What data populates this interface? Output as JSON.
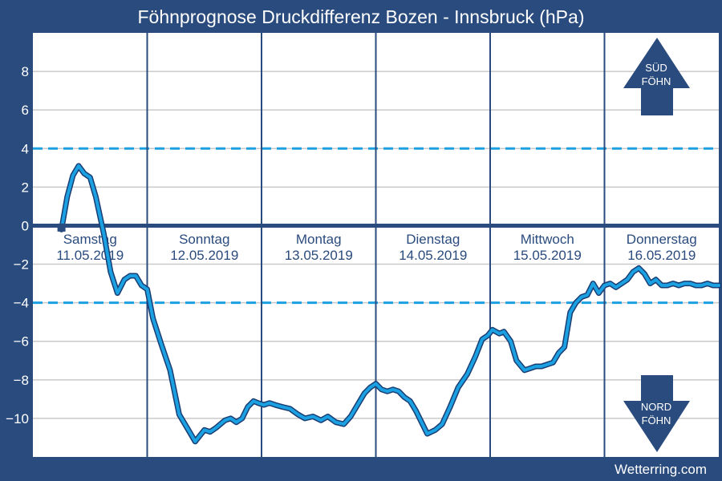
{
  "chart_data": {
    "type": "line",
    "title": "Föhnprognose Druckdifferenz Bozen - Innsbruck (hPa)",
    "ylim": [
      -12,
      10
    ],
    "yticks": [
      8,
      6,
      4,
      2,
      0,
      -2,
      -4,
      -6,
      -8,
      -10
    ],
    "ytick_labels": [
      "8",
      "6",
      "4",
      "2",
      "0",
      "−2",
      "−4",
      "−6",
      "−8",
      "−10"
    ],
    "threshold_lines": [
      4,
      -4
    ],
    "zero_line": 0,
    "grid": true,
    "days": [
      {
        "name": "Samstag",
        "date": "11.05.2019"
      },
      {
        "name": "Sonntag",
        "date": "12.05.2019"
      },
      {
        "name": "Montag",
        "date": "13.05.2019"
      },
      {
        "name": "Dienstag",
        "date": "14.05.2019"
      },
      {
        "name": "Mittwoch",
        "date": "15.05.2019"
      },
      {
        "name": "Donnerstag",
        "date": "16.05.2019"
      }
    ],
    "x_unit": "days since start of 11.05.2019",
    "xlim": [
      0,
      6
    ],
    "start_marker": {
      "x": 0.25,
      "y": -0.1
    },
    "series": [
      {
        "x": [
          0.25,
          0.3,
          0.35,
          0.4,
          0.45,
          0.5,
          0.55,
          0.62,
          0.68,
          0.74,
          0.8,
          0.85,
          0.9,
          0.95,
          1.0,
          1.05,
          1.12,
          1.2,
          1.28,
          1.35,
          1.42,
          1.5,
          1.55,
          1.6,
          1.68,
          1.73,
          1.78,
          1.83,
          1.88,
          1.93,
          1.97,
          2.02,
          2.07,
          2.12,
          2.18,
          2.25,
          2.32,
          2.38,
          2.45,
          2.52,
          2.58,
          2.65,
          2.72,
          2.78,
          2.85,
          2.9,
          2.95,
          3.0,
          3.05,
          3.1,
          3.15,
          3.2,
          3.25,
          3.3,
          3.35,
          3.4,
          3.45,
          3.52,
          3.58,
          3.65,
          3.72,
          3.8,
          3.87,
          3.93,
          3.98,
          4.02,
          4.08,
          4.12,
          4.18,
          4.23,
          4.3,
          4.35,
          4.4,
          4.45,
          4.5,
          4.55,
          4.6,
          4.65,
          4.7,
          4.75,
          4.8,
          4.85,
          4.9,
          4.95,
          5.0,
          5.05,
          5.1,
          5.15,
          5.2,
          5.25,
          5.3,
          5.35,
          5.4,
          5.45,
          5.5,
          5.55,
          5.6,
          5.65,
          5.7,
          5.75,
          5.8,
          5.85,
          5.9,
          5.95,
          6.0
        ],
        "values": [
          -0.2,
          1.5,
          2.6,
          3.1,
          2.7,
          2.5,
          1.5,
          -0.4,
          -2.4,
          -3.5,
          -2.8,
          -2.6,
          -2.6,
          -3.1,
          -3.3,
          -4.8,
          -6.1,
          -7.5,
          -9.8,
          -10.5,
          -11.2,
          -10.6,
          -10.7,
          -10.5,
          -10.1,
          -10.0,
          -10.2,
          -10.0,
          -9.4,
          -9.1,
          -9.2,
          -9.3,
          -9.2,
          -9.3,
          -9.4,
          -9.5,
          -9.8,
          -10.0,
          -9.9,
          -10.1,
          -9.9,
          -10.2,
          -10.3,
          -9.9,
          -9.2,
          -8.7,
          -8.4,
          -8.2,
          -8.5,
          -8.6,
          -8.5,
          -8.6,
          -8.9,
          -9.1,
          -9.6,
          -10.2,
          -10.8,
          -10.6,
          -10.3,
          -9.4,
          -8.4,
          -7.7,
          -6.8,
          -5.9,
          -5.7,
          -5.4,
          -5.6,
          -5.5,
          -6.0,
          -7.0,
          -7.5,
          -7.4,
          -7.3,
          -7.3,
          -7.2,
          -7.1,
          -6.6,
          -6.3,
          -4.5,
          -4.0,
          -3.7,
          -3.6,
          -3.0,
          -3.5,
          -3.1,
          -3.0,
          -3.2,
          -3.0,
          -2.8,
          -2.4,
          -2.2,
          -2.5,
          -3.0,
          -2.8,
          -3.1,
          -3.1,
          -3.0,
          -3.1,
          -3.0,
          -3.0,
          -3.1,
          -3.1,
          -3.0,
          -3.1,
          -3.1
        ]
      }
    ],
    "up_arrow_label": [
      "SÜD",
      "FÖHN"
    ],
    "down_arrow_label": [
      "NORD",
      "FÖHN"
    ],
    "colors": {
      "frame": "#2a4b7e",
      "plot_bg": "#ffffff",
      "grid": "#c9c9c9",
      "line": "#1ba1e2",
      "line_edge": "#1a3d73",
      "threshold": "#1ba1e2",
      "zero": "#2a4b7e"
    }
  },
  "brand": "Wetterring.com"
}
